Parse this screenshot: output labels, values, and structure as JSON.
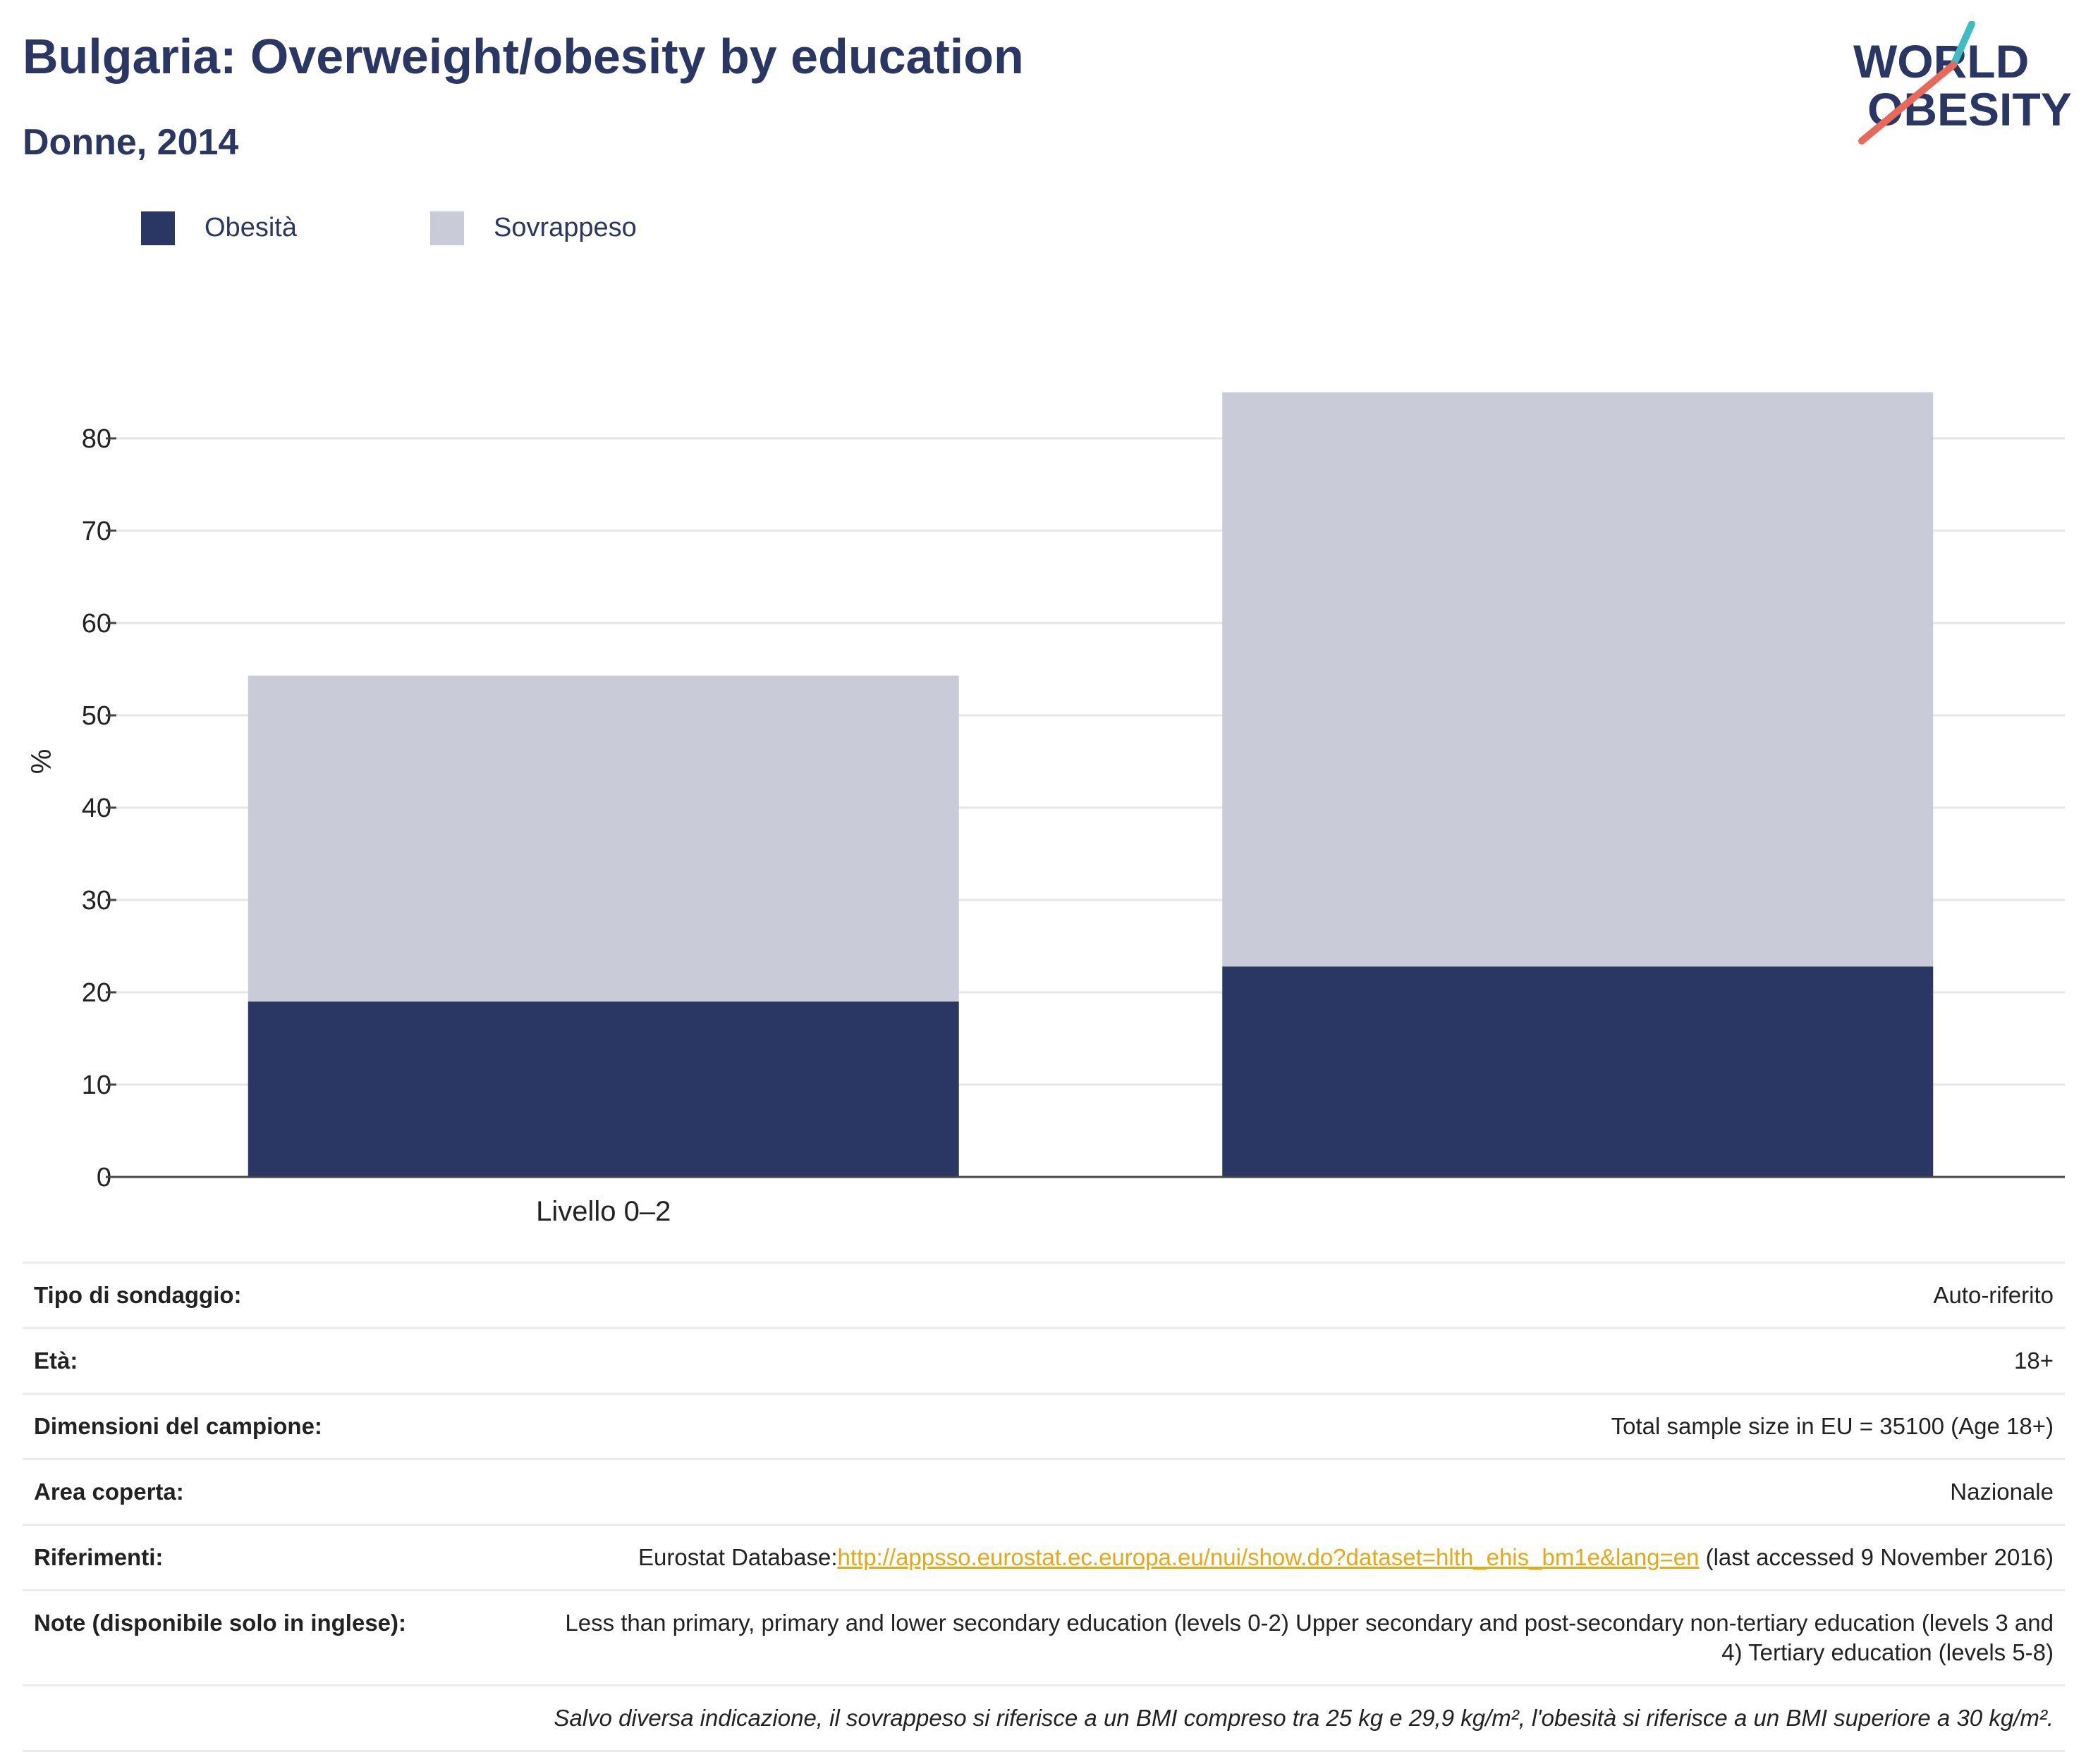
{
  "header": {
    "title": "Bulgaria: Overweight/obesity by education",
    "subtitle": "Donne, 2014",
    "logo": {
      "line1": "WORLD",
      "line2": "OBESITY",
      "accent_teal": "#3ebcc1",
      "accent_red": "#e8695a",
      "text_color": "#2a3663"
    }
  },
  "legend": [
    {
      "label": "Obesità",
      "color": "#2a3663"
    },
    {
      "label": "Sovrappeso",
      "color": "#c9ccd8"
    }
  ],
  "chart_data": {
    "type": "bar",
    "stacked": true,
    "categories": [
      "Livello 0–2",
      ""
    ],
    "series": [
      {
        "name": "Obesità",
        "color": "#2a3663",
        "values": [
          19,
          22.8
        ]
      },
      {
        "name": "Sovrappeso",
        "color": "#c9ccd8",
        "values": [
          35.3,
          62.2
        ]
      }
    ],
    "ylabel": "%",
    "ylim": [
      0,
      90
    ],
    "yticks": [
      0,
      10,
      20,
      30,
      40,
      50,
      60,
      70,
      80
    ],
    "grid": true,
    "legend_position": "top-left"
  },
  "info": {
    "survey_type": {
      "label": "Tipo di sondaggio:",
      "value": "Auto-riferito"
    },
    "age": {
      "label": "Età:",
      "value": "18+"
    },
    "sample": {
      "label": "Dimensioni del campione:",
      "value": "Total sample size in EU = 35100 (Age 18+)"
    },
    "area": {
      "label": "Area coperta:",
      "value": "Nazionale"
    },
    "references": {
      "label": "Riferimenti:",
      "prefix": "Eurostat Database:",
      "link": "http://appsso.eurostat.ec.europa.eu/nui/show.do?dataset=hlth_ehis_bm1e&lang=en",
      "suffix": " (last accessed 9 November 2016)"
    },
    "notes": {
      "label": "Note (disponibile solo in inglese):",
      "value": "Less than primary, primary and lower secondary education (levels 0-2) Upper secondary and post-secondary non-tertiary education (levels 3 and 4) Tertiary education (levels 5-8)"
    },
    "footnote": "Salvo diversa indicazione, il sovrappeso si riferisce a un BMI compreso tra 25 kg e 29,9 kg/m², l'obesità si riferisce a un BMI superiore a 30 kg/m²."
  }
}
